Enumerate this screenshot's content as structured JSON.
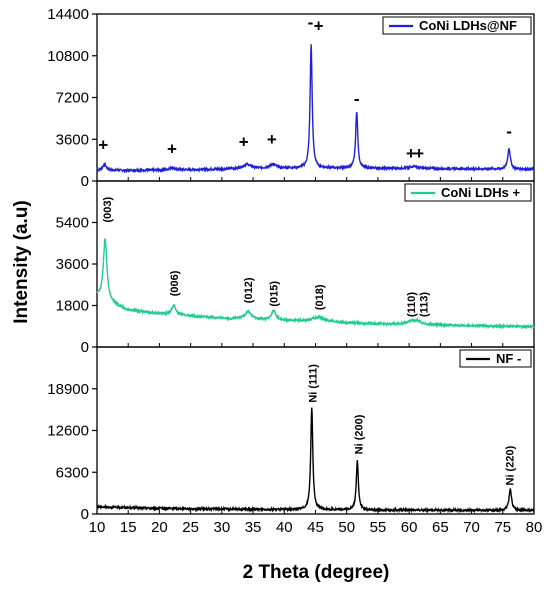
{
  "chart_data": {
    "type": "line",
    "xlabel": "2 Theta (degree)",
    "ylabel": "Intensity (a.u)",
    "xlim": [
      10,
      80
    ],
    "x_ticks": [
      "10",
      "15",
      "20",
      "25",
      "30",
      "35",
      "40",
      "45",
      "50",
      "55",
      "60",
      "65",
      "70",
      "75",
      "80"
    ],
    "panels": [
      {
        "series": [
          {
            "name": "CoNi LDHs@NF",
            "color": "#1f1fd6"
          }
        ],
        "ylim": [
          0,
          14400
        ],
        "y_ticks": [
          {
            "value": 0,
            "label": "0"
          },
          {
            "value": 3600,
            "label": "3600"
          },
          {
            "value": 7200,
            "label": "7200"
          },
          {
            "value": 10800,
            "label": "10800"
          },
          {
            "value": 14400,
            "label": "14400"
          }
        ],
        "legend_marker": "",
        "baseline": [
          [
            10,
            900
          ],
          [
            15,
            920
          ],
          [
            20,
            940
          ],
          [
            25,
            980
          ],
          [
            30,
            1020
          ],
          [
            35,
            1080
          ],
          [
            40,
            1100
          ],
          [
            45,
            1120
          ],
          [
            50,
            1120
          ],
          [
            55,
            1100
          ],
          [
            60,
            1090
          ],
          [
            65,
            1070
          ],
          [
            70,
            1050
          ],
          [
            75,
            1030
          ],
          [
            80,
            1010
          ]
        ],
        "peaks": [
          [
            11.2,
            500,
            0.4
          ],
          [
            22,
            200,
            0.5
          ],
          [
            34,
            350,
            0.8
          ],
          [
            38.2,
            350,
            0.6
          ],
          [
            44.3,
            10600,
            0.2
          ],
          [
            51.6,
            4900,
            0.2
          ],
          [
            60.8,
            200,
            0.6
          ],
          [
            76,
            1800,
            0.25
          ]
        ],
        "markers": [
          {
            "x": 11,
            "y": 2650,
            "symbol": "+"
          },
          {
            "x": 22,
            "y": 2300,
            "symbol": "+"
          },
          {
            "x": 33.5,
            "y": 2900,
            "symbol": "+"
          },
          {
            "x": 38,
            "y": 3100,
            "symbol": "+"
          },
          {
            "x": 44.2,
            "y": 13200,
            "symbol": "-"
          },
          {
            "x": 45.5,
            "y": 12900,
            "symbol": "+"
          },
          {
            "x": 51.6,
            "y": 6600,
            "symbol": "-"
          },
          {
            "x": 60.3,
            "y": 1900,
            "symbol": "+"
          },
          {
            "x": 61.6,
            "y": 1900,
            "symbol": "+"
          },
          {
            "x": 76,
            "y": 3800,
            "symbol": "-"
          }
        ],
        "peak_labels": []
      },
      {
        "series": [
          {
            "name": "CoNi LDHs",
            "color": "#1fcc95"
          }
        ],
        "ylim": [
          0,
          7200
        ],
        "y_ticks": [
          {
            "value": 0,
            "label": "0"
          },
          {
            "value": 1800,
            "label": "1800"
          },
          {
            "value": 3600,
            "label": "3600"
          },
          {
            "value": 5400,
            "label": "5400"
          }
        ],
        "legend_marker": "+",
        "baseline": [
          [
            10,
            2200
          ],
          [
            11,
            2000
          ],
          [
            13,
            1800
          ],
          [
            15,
            1600
          ],
          [
            20,
            1450
          ],
          [
            25,
            1350
          ],
          [
            30,
            1250
          ],
          [
            35,
            1200
          ],
          [
            40,
            1150
          ],
          [
            45,
            1100
          ],
          [
            50,
            1050
          ],
          [
            55,
            1000
          ],
          [
            60,
            980
          ],
          [
            65,
            950
          ],
          [
            70,
            930
          ],
          [
            75,
            900
          ],
          [
            80,
            880
          ]
        ],
        "peaks": [
          [
            11.3,
            2700,
            0.35
          ],
          [
            22.3,
            400,
            0.4
          ],
          [
            34.2,
            330,
            0.6
          ],
          [
            38.3,
            400,
            0.4
          ],
          [
            45.5,
            200,
            1.2
          ],
          [
            60.4,
            150,
            0.8
          ],
          [
            61.4,
            120,
            0.6
          ]
        ],
        "markers": [],
        "peak_labels": [
          {
            "x": 11.6,
            "y": 5400,
            "label": "(003)"
          },
          {
            "x": 22.3,
            "y": 2200,
            "label": "(006)"
          },
          {
            "x": 34.2,
            "y": 1900,
            "label": "(012)"
          },
          {
            "x": 38.3,
            "y": 1750,
            "label": "(015)"
          },
          {
            "x": 45.6,
            "y": 1600,
            "label": "(018)"
          },
          {
            "x": 60.3,
            "y": 1300,
            "label": "(110)"
          },
          {
            "x": 62.3,
            "y": 1300,
            "label": "(113)"
          }
        ]
      },
      {
        "series": [
          {
            "name": "NF",
            "color": "#000000"
          }
        ],
        "ylim": [
          0,
          25200
        ],
        "y_ticks": [
          {
            "value": 0,
            "label": "0"
          },
          {
            "value": 6300,
            "label": "6300"
          },
          {
            "value": 12600,
            "label": "12600"
          },
          {
            "value": 18900,
            "label": "18900"
          }
        ],
        "legend_marker": "-",
        "baseline": [
          [
            10,
            1100
          ],
          [
            15,
            950
          ],
          [
            20,
            850
          ],
          [
            25,
            800
          ],
          [
            30,
            750
          ],
          [
            35,
            700
          ],
          [
            40,
            680
          ],
          [
            45,
            650
          ],
          [
            50,
            620
          ],
          [
            55,
            600
          ],
          [
            60,
            590
          ],
          [
            65,
            580
          ],
          [
            70,
            570
          ],
          [
            75,
            560
          ],
          [
            80,
            550
          ]
        ],
        "peaks": [
          [
            44.4,
            15300,
            0.2
          ],
          [
            51.7,
            7400,
            0.2
          ],
          [
            76.2,
            3100,
            0.25
          ]
        ],
        "markers": [],
        "peak_labels": [
          {
            "x": 44.5,
            "y": 16800,
            "label": "Ni (111)"
          },
          {
            "x": 51.9,
            "y": 9000,
            "label": "Ni (200)"
          },
          {
            "x": 76.1,
            "y": 4300,
            "label": "Ni (220)"
          }
        ]
      }
    ]
  }
}
